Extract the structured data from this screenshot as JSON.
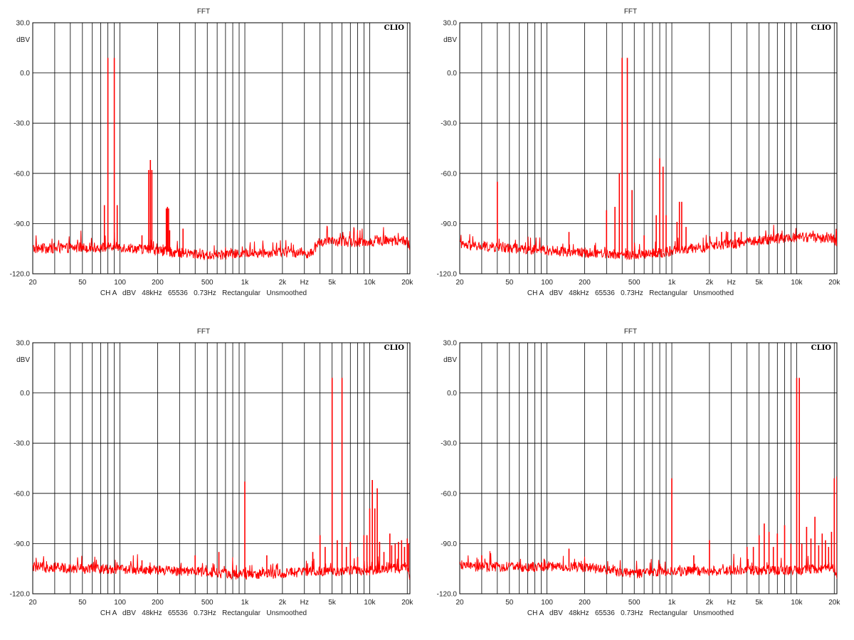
{
  "colors": {
    "trace": "#ff0000",
    "grid": "#000000",
    "frame": "#000000",
    "background": "#ffffff"
  },
  "chart_data": [
    {
      "type": "line",
      "title": "FFT",
      "brand": "CLIO",
      "ylabel": "dBV",
      "xlabel": "Hz",
      "x_scale": "log",
      "xlim": [
        20,
        21000
      ],
      "ylim": [
        -120,
        30
      ],
      "y_ticks": [
        "30.0",
        "0.0",
        "-30.0",
        "-60.0",
        "-90.0",
        "-120.0"
      ],
      "x_ticks": [
        "20",
        "50",
        "100",
        "200",
        "500",
        "1k",
        "2k",
        "5k",
        "10k",
        "20k"
      ],
      "footer": "CH A   dBV   48kHz   65536   0.73Hz   Rectangular   Unsmoothed",
      "noise_floor": [
        [
          20,
          -105
        ],
        [
          100,
          -104
        ],
        [
          500,
          -109
        ],
        [
          2000,
          -107
        ],
        [
          3500,
          -108
        ],
        [
          4000,
          -101
        ],
        [
          10000,
          -101
        ],
        [
          20000,
          -100
        ],
        [
          21000,
          -105
        ]
      ],
      "peaks": [
        [
          75,
          -79
        ],
        [
          80,
          9
        ],
        [
          90,
          9
        ],
        [
          95,
          -79
        ],
        [
          150,
          -97
        ],
        [
          170,
          -58
        ],
        [
          175,
          -52
        ],
        [
          180,
          -58
        ],
        [
          235,
          -81
        ],
        [
          240,
          -80
        ],
        [
          245,
          -81
        ],
        [
          250,
          -94
        ],
        [
          320,
          -93
        ]
      ]
    },
    {
      "type": "line",
      "title": "FFT",
      "brand": "CLIO",
      "ylabel": "dBV",
      "xlabel": "Hz",
      "x_scale": "log",
      "xlim": [
        20,
        21000
      ],
      "ylim": [
        -120,
        30
      ],
      "y_ticks": [
        "30.0",
        "0.0",
        "-30.0",
        "-60.0",
        "-90.0",
        "-120.0"
      ],
      "x_ticks": [
        "20",
        "50",
        "100",
        "200",
        "500",
        "1k",
        "2k",
        "5k",
        "10k",
        "20k"
      ],
      "footer": "CH A   dBV   48kHz   65536   0.73Hz   Rectangular   Unsmoothed",
      "noise_floor": [
        [
          20,
          -103
        ],
        [
          100,
          -106
        ],
        [
          500,
          -109
        ],
        [
          2000,
          -104
        ],
        [
          5000,
          -100
        ],
        [
          10000,
          -98
        ],
        [
          20000,
          -99
        ],
        [
          21000,
          -102
        ]
      ],
      "peaks": [
        [
          40,
          -65
        ],
        [
          150,
          -95
        ],
        [
          300,
          -82
        ],
        [
          350,
          -80
        ],
        [
          380,
          -60
        ],
        [
          400,
          9
        ],
        [
          440,
          9
        ],
        [
          480,
          -70
        ],
        [
          600,
          -97
        ],
        [
          750,
          -85
        ],
        [
          800,
          -51
        ],
        [
          850,
          -56
        ],
        [
          900,
          -85
        ],
        [
          1100,
          -89
        ],
        [
          1150,
          -77
        ],
        [
          1200,
          -77
        ],
        [
          1300,
          -92
        ],
        [
          2500,
          -95
        ],
        [
          2800,
          -95
        ],
        [
          3200,
          -95
        ],
        [
          3600,
          -95
        ]
      ]
    },
    {
      "type": "line",
      "title": "FFT",
      "brand": "CLIO",
      "ylabel": "dBV",
      "xlabel": "Hz",
      "x_scale": "log",
      "xlim": [
        20,
        21000
      ],
      "ylim": [
        -120,
        30
      ],
      "y_ticks": [
        "30.0",
        "0.0",
        "-30.0",
        "-60.0",
        "-90.0",
        "-120.0"
      ],
      "x_ticks": [
        "20",
        "50",
        "100",
        "200",
        "500",
        "1k",
        "2k",
        "5k",
        "10k",
        "20k"
      ],
      "footer": "CH A   dBV   48kHz   65536   0.73Hz   Rectangular   Unsmoothed",
      "noise_floor": [
        [
          20,
          -104
        ],
        [
          200,
          -106
        ],
        [
          500,
          -107
        ],
        [
          1000,
          -109
        ],
        [
          3000,
          -107
        ],
        [
          10000,
          -106
        ],
        [
          20000,
          -104
        ],
        [
          21000,
          -110
        ]
      ],
      "peaks": [
        [
          150,
          -100
        ],
        [
          400,
          -97
        ],
        [
          620,
          -95
        ],
        [
          1000,
          -53
        ],
        [
          1500,
          -97
        ],
        [
          3500,
          -95
        ],
        [
          4000,
          -85
        ],
        [
          4400,
          -92
        ],
        [
          5000,
          9
        ],
        [
          5500,
          -88
        ],
        [
          6000,
          9
        ],
        [
          6500,
          -92
        ],
        [
          7000,
          -89
        ],
        [
          8000,
          -98
        ],
        [
          9000,
          -85
        ],
        [
          9500,
          -85
        ],
        [
          10000,
          -69
        ],
        [
          10500,
          -52
        ],
        [
          11000,
          -69
        ],
        [
          11500,
          -57
        ],
        [
          12000,
          -89
        ],
        [
          13000,
          -95
        ],
        [
          14500,
          -84
        ],
        [
          15000,
          -91
        ],
        [
          16000,
          -90
        ],
        [
          17000,
          -89
        ],
        [
          18000,
          -88
        ],
        [
          19000,
          -92
        ],
        [
          20000,
          -87
        ],
        [
          20500,
          -90
        ]
      ]
    },
    {
      "type": "line",
      "title": "FFT",
      "brand": "CLIO",
      "ylabel": "dBV",
      "xlabel": "Hz",
      "x_scale": "log",
      "xlim": [
        20,
        21000
      ],
      "ylim": [
        -120,
        30
      ],
      "y_ticks": [
        "30.0",
        "0.0",
        "-30.0",
        "-60.0",
        "-90.0",
        "-120.0"
      ],
      "x_ticks": [
        "20",
        "50",
        "100",
        "200",
        "500",
        "1k",
        "2k",
        "5k",
        "10k",
        "20k"
      ],
      "footer": "CH A   dBV   48kHz   65536   0.73Hz   Rectangular   Unsmoothed",
      "noise_floor": [
        [
          20,
          -104
        ],
        [
          200,
          -104
        ],
        [
          500,
          -108
        ],
        [
          1000,
          -107
        ],
        [
          3000,
          -106
        ],
        [
          10000,
          -106
        ],
        [
          20000,
          -104
        ],
        [
          21000,
          -110
        ]
      ],
      "peaks": [
        [
          30,
          -97
        ],
        [
          150,
          -93
        ],
        [
          1000,
          -51
        ],
        [
          1500,
          -97
        ],
        [
          2000,
          -88
        ],
        [
          4000,
          -92
        ],
        [
          4500,
          -92
        ],
        [
          5000,
          -85
        ],
        [
          5500,
          -78
        ],
        [
          6000,
          -83
        ],
        [
          6500,
          -92
        ],
        [
          7000,
          -84
        ],
        [
          8000,
          -79
        ],
        [
          9000,
          -90
        ],
        [
          10000,
          9
        ],
        [
          10500,
          9
        ],
        [
          11000,
          -90
        ],
        [
          12000,
          -80
        ],
        [
          13000,
          -87
        ],
        [
          14000,
          -74
        ],
        [
          15000,
          -91
        ],
        [
          16000,
          -84
        ],
        [
          17000,
          -88
        ],
        [
          18000,
          -92
        ],
        [
          19000,
          -83
        ],
        [
          20000,
          -51
        ],
        [
          21000,
          -50
        ]
      ]
    }
  ]
}
